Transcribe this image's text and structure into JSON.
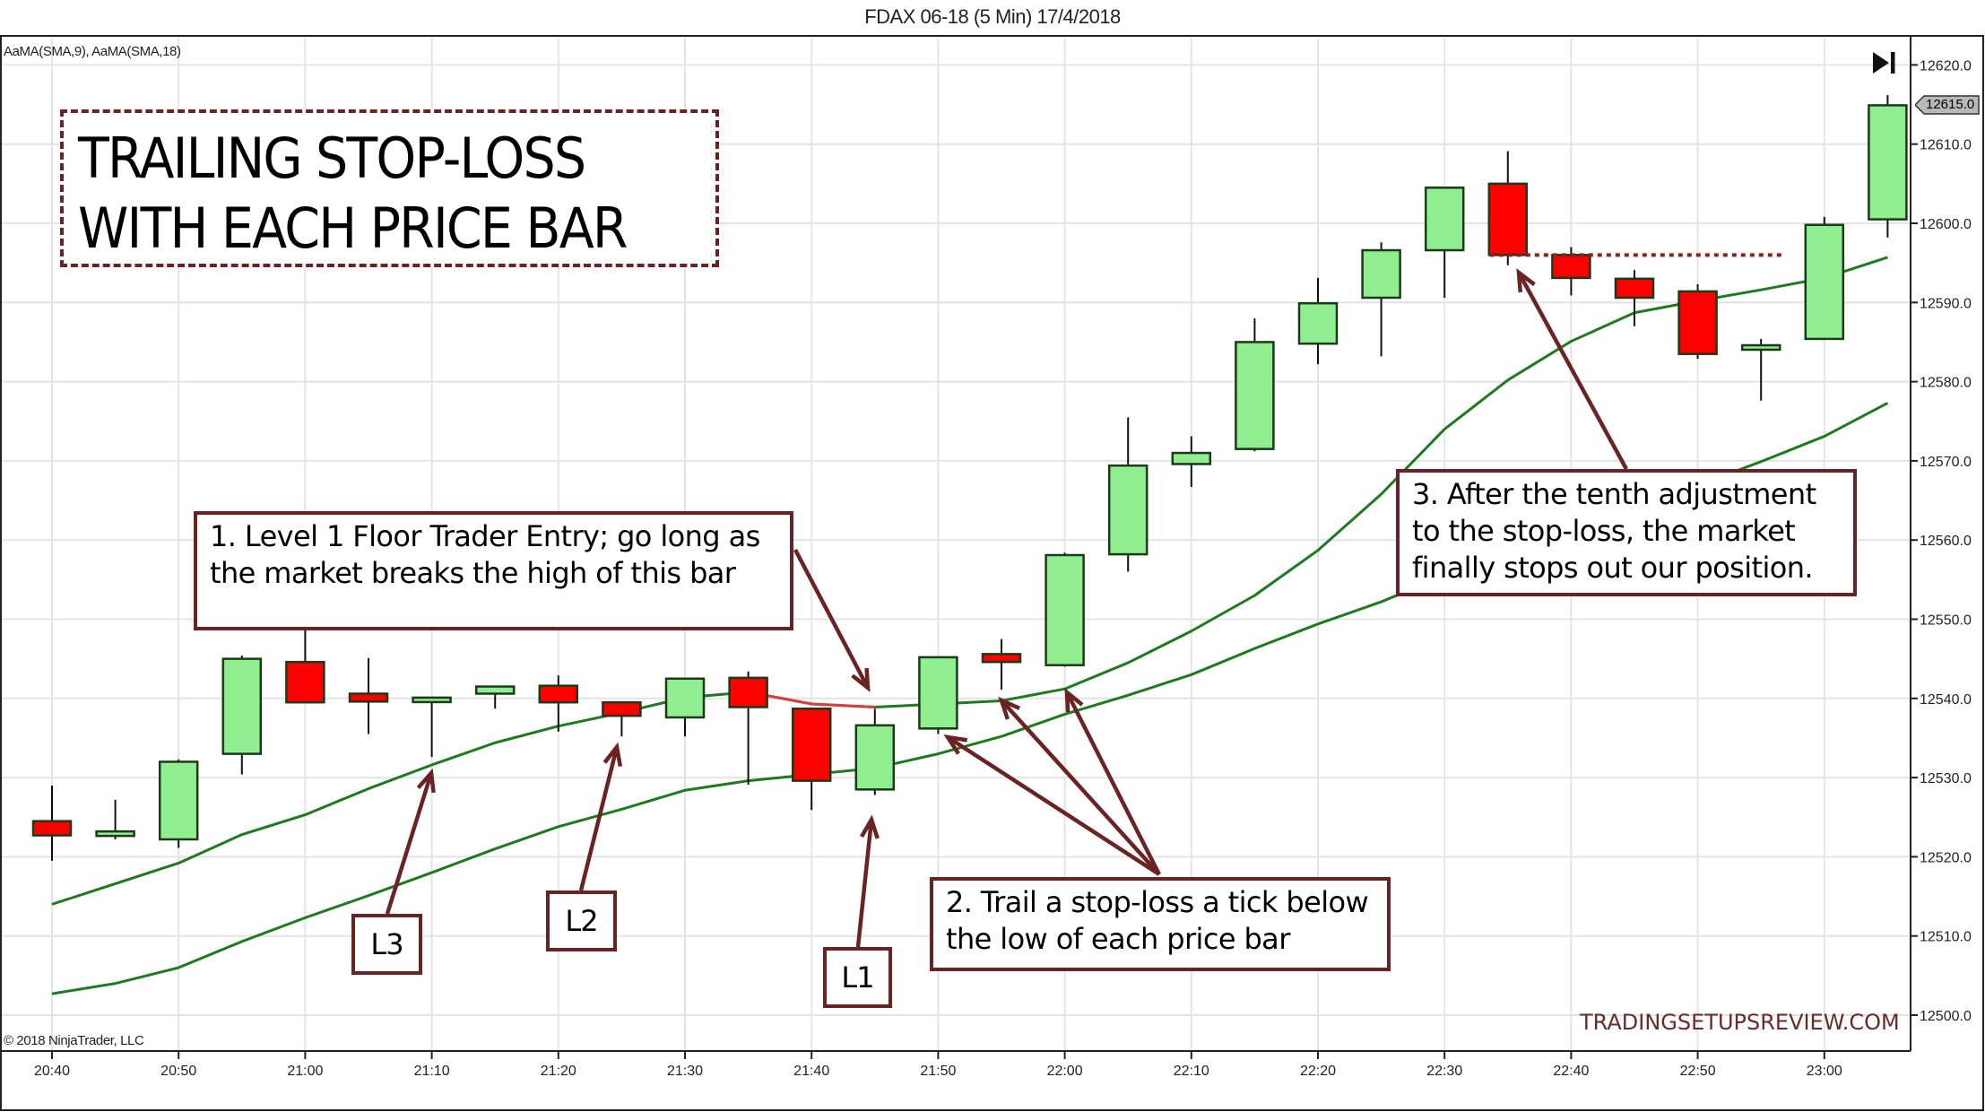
{
  "header": {
    "title": "FDAX 06-18 (5 Min)  17/4/2018",
    "indicators": "AaMA(SMA,9), AaMA(SMA,18)"
  },
  "footer": {
    "copyright": "© 2018 NinjaTrader, LLC",
    "watermark": "TRADINGSETUPSREVIEW.COM"
  },
  "icons": {
    "jump_to_end": "skip-to-end-icon"
  },
  "title_box": {
    "line1": "TRAILING STOP-LOSS",
    "line2": "WITH EACH PRICE BAR"
  },
  "annotations": {
    "note1": {
      "line1": "1. Level 1 Floor Trader Entry; go long as",
      "line2": "the market breaks the high of this bar"
    },
    "note2": {
      "line1": "2. Trail a stop-loss a tick below",
      "line2": "the low of each price bar"
    },
    "note3": {
      "line1": "3. After the tenth adjustment",
      "line2": "to the stop-loss, the market",
      "line3": "finally stops out our position."
    },
    "l1": "L1",
    "l2": "L2",
    "l3": "L3"
  },
  "last_price_label": "12615.0",
  "colors": {
    "up_candle": "#90ee90",
    "down_candle": "#ff0000",
    "candle_outline": "#1a3a1a",
    "ma_line": "#1e7a1e",
    "ma_line_down": "#e03a3a",
    "annotation": "#6b2222",
    "grid": "#e4e4e4",
    "axis": "#222222"
  },
  "chart_data": {
    "type": "candlestick",
    "title": "FDAX 06-18 (5 Min)  17/4/2018",
    "xlabel": "",
    "ylabel": "",
    "ylim": [
      12496,
      12624
    ],
    "y_ticks": [
      12500.0,
      12510.0,
      12520.0,
      12530.0,
      12540.0,
      12550.0,
      12560.0,
      12570.0,
      12580.0,
      12590.0,
      12600.0,
      12610.0,
      12620.0
    ],
    "x_ticks": [
      "20:40",
      "20:50",
      "21:00",
      "21:10",
      "21:20",
      "21:30",
      "21:40",
      "21:50",
      "22:00",
      "22:10",
      "22:20",
      "22:30",
      "22:40",
      "22:50",
      "23:00"
    ],
    "grid": true,
    "legend": [
      "AaMA(SMA,9)",
      "AaMA(SMA,18)"
    ],
    "categories": [
      "20:40",
      "20:45",
      "20:50",
      "20:55",
      "21:00",
      "21:05",
      "21:10",
      "21:15",
      "21:20",
      "21:25",
      "21:30",
      "21:35",
      "21:40",
      "21:45",
      "21:50",
      "21:55",
      "22:00",
      "22:05",
      "22:10",
      "22:15",
      "22:20",
      "22:25",
      "22:30",
      "22:35",
      "22:40",
      "22:45",
      "22:50",
      "22:55",
      "23:00",
      "23:05"
    ],
    "ohlc": [
      {
        "o": 12524.5,
        "h": 12529.0,
        "l": 12519.5,
        "c": 12522.7
      },
      {
        "o": 12522.7,
        "h": 12527.2,
        "l": 12522.2,
        "c": 12523.2
      },
      {
        "o": 12522.2,
        "h": 12532.3,
        "l": 12521.1,
        "c": 12532.0
      },
      {
        "o": 12533.0,
        "h": 12545.4,
        "l": 12530.4,
        "c": 12545.0
      },
      {
        "o": 12544.6,
        "h": 12550.1,
        "l": 12539.5,
        "c": 12539.5
      },
      {
        "o": 12540.6,
        "h": 12545.1,
        "l": 12535.5,
        "c": 12539.6
      },
      {
        "o": 12539.7,
        "h": 12540.2,
        "l": 12532.6,
        "c": 12540.1
      },
      {
        "o": 12540.6,
        "h": 12541.6,
        "l": 12538.7,
        "c": 12541.5
      },
      {
        "o": 12541.6,
        "h": 12542.9,
        "l": 12535.8,
        "c": 12539.5
      },
      {
        "o": 12539.5,
        "h": 12539.6,
        "l": 12535.2,
        "c": 12537.8
      },
      {
        "o": 12537.6,
        "h": 12542.6,
        "l": 12535.2,
        "c": 12542.5
      },
      {
        "o": 12542.6,
        "h": 12543.4,
        "l": 12529.1,
        "c": 12538.9
      },
      {
        "o": 12538.7,
        "h": 12538.7,
        "l": 12525.9,
        "c": 12529.6
      },
      {
        "o": 12528.5,
        "h": 12538.7,
        "l": 12527.8,
        "c": 12536.6
      },
      {
        "o": 12536.2,
        "h": 12545.3,
        "l": 12535.5,
        "c": 12545.2
      },
      {
        "o": 12545.6,
        "h": 12547.5,
        "l": 12541.1,
        "c": 12544.6
      },
      {
        "o": 12544.2,
        "h": 12558.4,
        "l": 12544.0,
        "c": 12558.1
      },
      {
        "o": 12558.2,
        "h": 12575.5,
        "l": 12556.0,
        "c": 12569.4
      },
      {
        "o": 12569.6,
        "h": 12573.1,
        "l": 12566.7,
        "c": 12571.0
      },
      {
        "o": 12571.5,
        "h": 12588.0,
        "l": 12571.2,
        "c": 12585.0
      },
      {
        "o": 12584.8,
        "h": 12593.1,
        "l": 12582.2,
        "c": 12589.9
      },
      {
        "o": 12590.6,
        "h": 12597.6,
        "l": 12583.2,
        "c": 12596.6
      },
      {
        "o": 12596.6,
        "h": 12604.6,
        "l": 12590.6,
        "c": 12604.5
      },
      {
        "o": 12605.0,
        "h": 12609.1,
        "l": 12594.7,
        "c": 12596.0
      },
      {
        "o": 12596.0,
        "h": 12597.0,
        "l": 12590.9,
        "c": 12593.1
      },
      {
        "o": 12593.0,
        "h": 12594.1,
        "l": 12587.0,
        "c": 12590.6
      },
      {
        "o": 12591.4,
        "h": 12592.3,
        "l": 12582.9,
        "c": 12583.5
      },
      {
        "o": 12584.3,
        "h": 12585.4,
        "l": 12577.6,
        "c": 12584.6
      },
      {
        "o": 12585.4,
        "h": 12600.8,
        "l": 12585.3,
        "c": 12599.8
      },
      {
        "o": 12600.5,
        "h": 12616.2,
        "l": 12598.2,
        "c": 12614.9
      }
    ],
    "series": [
      {
        "name": "AaMA(SMA,9)",
        "values": [
          12514.0,
          12516.6,
          12519.2,
          12522.8,
          12525.3,
          12528.6,
          12531.6,
          12534.4,
          12536.5,
          12538.2,
          12540.1,
          12540.8,
          12539.3,
          12538.9,
          12539.3,
          12539.7,
          12541.2,
          12544.5,
          12548.5,
          12553.0,
          12558.7,
          12565.8,
          12574.0,
          12580.2,
          12585.1,
          12588.7,
          12590.2,
          12591.6,
          12593.1,
          12595.7
        ]
      },
      {
        "name": "AaMA(SMA,18)",
        "values": [
          12502.7,
          12504.0,
          12506.0,
          12509.3,
          12512.3,
          12515.1,
          12518.0,
          12521.0,
          12523.8,
          12526.0,
          12528.4,
          12529.6,
          12530.4,
          12531.2,
          12533.0,
          12535.2,
          12538.0,
          12540.4,
          12543.0,
          12546.3,
          12549.4,
          12552.2,
          12555.5,
          12558.6,
          12561.4,
          12564.0,
          12566.9,
          12569.9,
          12573.1,
          12577.3
        ]
      }
    ],
    "annotations": [
      {
        "text": "TRAILING STOP-LOSS WITH EACH PRICE BAR",
        "type": "title-box"
      },
      {
        "text": "1. Level 1 Floor Trader Entry; go long as the market breaks the high of this bar",
        "points_to": "21:45"
      },
      {
        "text": "2. Trail a stop-loss a tick below the low of each price bar",
        "points_to": [
          "21:50",
          "21:55",
          "22:00"
        ]
      },
      {
        "text": "3. After the tenth adjustment to the stop-loss, the market finally stops out our position.",
        "points_to": "22:35"
      },
      {
        "text": "L1",
        "points_to": "21:45"
      },
      {
        "text": "L2",
        "points_to": "21:25"
      },
      {
        "text": "L3",
        "points_to": "21:10"
      },
      {
        "text": "stop level (dotted)",
        "value": 12596.0,
        "from": "22:35",
        "to": "22:55"
      }
    ],
    "last_price": 12615.0
  }
}
